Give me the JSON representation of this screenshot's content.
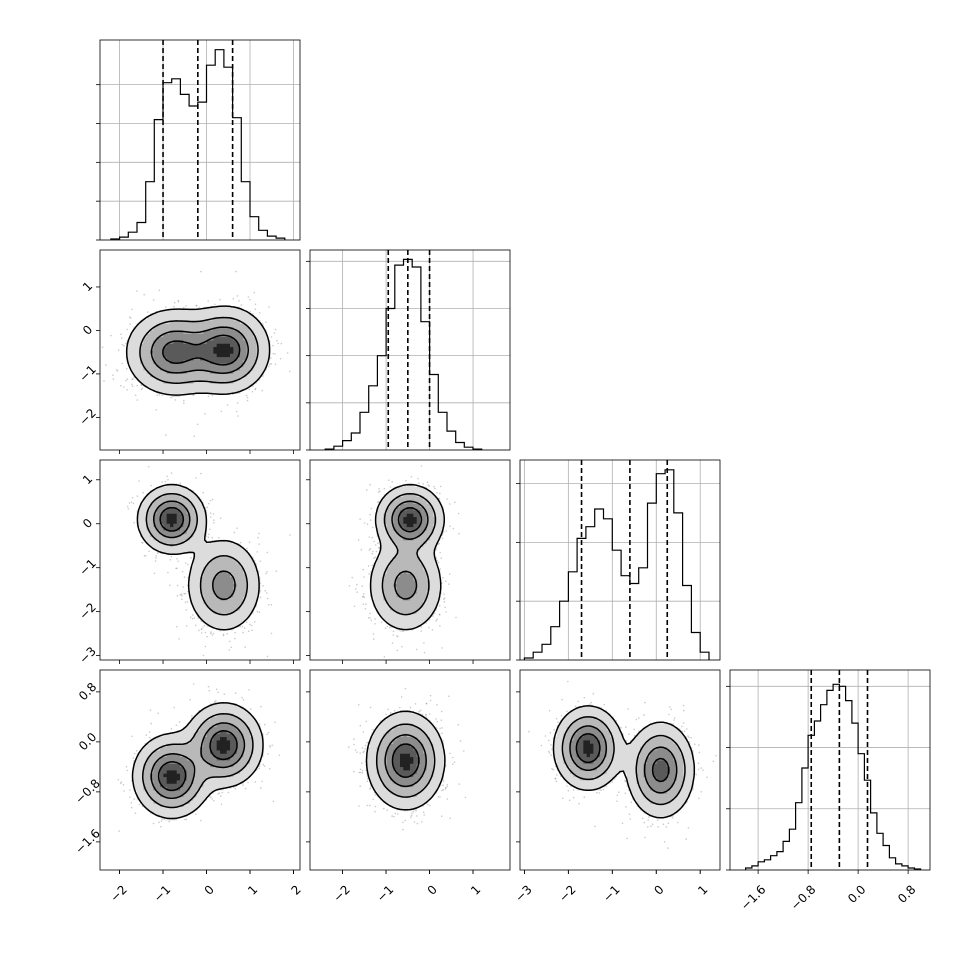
{
  "chart_data": {
    "type": "corner",
    "grid": true,
    "parameters": [
      {
        "id": "p1",
        "range": [
          -2.45,
          2.15
        ],
        "ticks": [
          -2,
          -1,
          0,
          1,
          2
        ],
        "tick_labels": [
          "−2",
          "−1",
          "0",
          "1",
          "2"
        ]
      },
      {
        "id": "p2",
        "range": [
          -2.75,
          1.85
        ],
        "ticks": [
          -2,
          -1,
          0,
          1
        ],
        "tick_labels": [
          "−2",
          "−1",
          "0",
          "1"
        ]
      },
      {
        "id": "p3",
        "range": [
          -3.1,
          1.45
        ],
        "ticks": [
          -3,
          -2,
          -1,
          0,
          1
        ],
        "tick_labels": [
          "−3",
          "−2",
          "−1",
          "0",
          "1"
        ]
      },
      {
        "id": "p4",
        "range": [
          -2.05,
          1.15
        ],
        "ticks": [
          -1.6,
          -0.8,
          0.0,
          0.8
        ],
        "tick_labels": [
          "−1.6",
          "−0.8",
          "0.0",
          "0.8"
        ]
      }
    ],
    "histograms": [
      {
        "param": "p1",
        "bins": [
          -2.2,
          -2.0,
          -1.8,
          -1.6,
          -1.4,
          -1.2,
          -1.0,
          -0.8,
          -0.6,
          -0.4,
          -0.2,
          0.0,
          0.2,
          0.4,
          0.6,
          0.8,
          1.0,
          1.2,
          1.4,
          1.6,
          1.8
        ],
        "counts": [
          0.5,
          1.5,
          4,
          9,
          30,
          62,
          81,
          83,
          75,
          69,
          71,
          90,
          98,
          89,
          63,
          30,
          12,
          5,
          2,
          1
        ],
        "ymax": 103,
        "yticks": [
          0,
          20,
          40,
          60,
          80
        ],
        "quantiles": [
          -1.0,
          -0.2,
          0.6
        ]
      },
      {
        "param": "p2",
        "bins": [
          -2.4,
          -2.2,
          -2.0,
          -1.8,
          -1.6,
          -1.4,
          -1.2,
          -1.0,
          -0.8,
          -0.6,
          -0.4,
          -0.2,
          0.0,
          0.2,
          0.4,
          0.6,
          0.8,
          1.0,
          1.2
        ],
        "counts": [
          0.5,
          2,
          5,
          9,
          20,
          34,
          50,
          75,
          98,
          101,
          97,
          68,
          40,
          20,
          10,
          4,
          1.5,
          0.5
        ],
        "ymax": 106,
        "yticks": [
          0,
          25,
          50,
          75,
          100
        ],
        "quantiles": [
          -0.95,
          -0.5,
          0.0
        ]
      },
      {
        "param": "p3",
        "bins": [
          -3.0,
          -2.8,
          -2.6,
          -2.4,
          -2.2,
          -2.0,
          -1.8,
          -1.6,
          -1.4,
          -1.2,
          -1.0,
          -0.8,
          -0.6,
          -0.4,
          -0.2,
          0.0,
          0.2,
          0.4,
          0.6,
          0.8,
          1.0,
          1.2
        ],
        "counts": [
          1,
          4,
          8,
          17,
          30,
          45,
          62,
          68,
          77,
          72,
          56,
          43,
          39,
          47,
          80,
          95,
          97,
          75,
          38,
          14,
          4
        ],
        "ymax": 102,
        "yticks": [
          0,
          30,
          60,
          90
        ],
        "quantiles": [
          -1.7,
          -0.6,
          0.25
        ]
      },
      {
        "param": "p4",
        "bins": [
          -1.8,
          -1.7,
          -1.6,
          -1.5,
          -1.4,
          -1.3,
          -1.2,
          -1.1,
          -1.0,
          -0.9,
          -0.8,
          -0.7,
          -0.6,
          -0.5,
          -0.4,
          -0.3,
          -0.2,
          -0.1,
          0.0,
          0.1,
          0.2,
          0.3,
          0.4,
          0.5,
          0.6,
          0.7,
          0.8,
          0.9,
          1.0
        ],
        "counts": [
          1,
          2,
          4,
          5,
          7,
          9,
          14,
          20,
          33,
          50,
          66,
          73,
          81,
          88,
          91,
          90,
          83,
          72,
          57,
          44,
          28,
          18,
          12,
          6,
          3,
          2,
          1,
          0.5
        ],
        "ymax": 98,
        "yticks": [
          0,
          30,
          60,
          90
        ],
        "quantiles": [
          -0.75,
          -0.3,
          0.15
        ]
      }
    ],
    "pairs": [
      {
        "x": "p1",
        "y": "p2",
        "modes": [
          {
            "mx": -0.75,
            "my": -0.5,
            "sx": 0.5,
            "sy": 0.45,
            "w": 1
          },
          {
            "mx": 0.45,
            "my": -0.45,
            "sx": 0.45,
            "sy": 0.45,
            "w": 1
          }
        ]
      },
      {
        "x": "p1",
        "y": "p3",
        "modes": [
          {
            "mx": -0.8,
            "my": 0.1,
            "sx": 0.35,
            "sy": 0.35,
            "w": 1
          },
          {
            "mx": 0.4,
            "my": -1.4,
            "sx": 0.4,
            "sy": 0.5,
            "w": 1
          }
        ]
      },
      {
        "x": "p2",
        "y": "p3",
        "modes": [
          {
            "mx": -0.45,
            "my": 0.1,
            "sx": 0.35,
            "sy": 0.35,
            "w": 1
          },
          {
            "mx": -0.55,
            "my": -1.4,
            "sx": 0.4,
            "sy": 0.5,
            "w": 1
          }
        ]
      },
      {
        "x": "p1",
        "y": "p4",
        "modes": [
          {
            "mx": -0.8,
            "my": -0.55,
            "sx": 0.4,
            "sy": 0.3,
            "w": 1
          },
          {
            "mx": 0.4,
            "my": -0.05,
            "sx": 0.4,
            "sy": 0.3,
            "w": 1
          }
        ]
      },
      {
        "x": "p2",
        "y": "p4",
        "modes": [
          {
            "mx": -0.55,
            "my": -0.3,
            "sx": 0.4,
            "sy": 0.35,
            "w": 1
          }
        ]
      },
      {
        "x": "p3",
        "y": "p4",
        "modes": [
          {
            "mx": -1.55,
            "my": -0.1,
            "sx": 0.35,
            "sy": 0.3,
            "w": 1
          },
          {
            "mx": 0.1,
            "my": -0.45,
            "sx": 0.35,
            "sy": 0.35,
            "w": 1
          }
        ]
      }
    ]
  }
}
